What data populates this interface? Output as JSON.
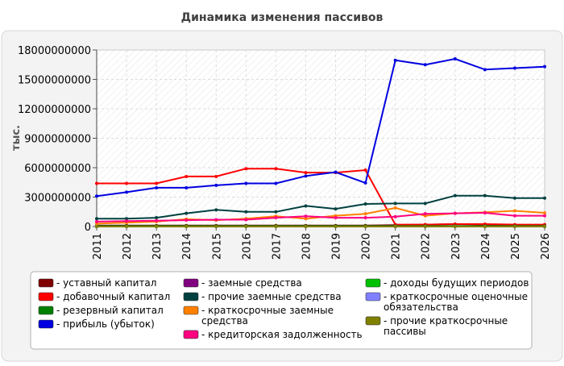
{
  "chart_data": {
    "type": "line",
    "title": "Динамика изменения пассивов",
    "ylabel": "тыс.",
    "xlabel": "",
    "x": [
      "2011",
      "2012",
      "2013",
      "2014",
      "2015",
      "2016",
      "2017",
      "2018",
      "2019",
      "2020",
      "2021",
      "2022",
      "2023",
      "2024",
      "2025",
      "2026"
    ],
    "ylim": [
      0,
      18000000000
    ],
    "yticks": [
      0,
      3000000000,
      6000000000,
      9000000000,
      12000000000,
      15000000000,
      18000000000
    ],
    "ytick_labels": [
      "0",
      "3000000000",
      "6000000000",
      "9000000000",
      "12000000000",
      "15000000000",
      "18000000000"
    ],
    "grid": true,
    "legend_position": "bottom",
    "series": [
      {
        "name": "уставный капитал",
        "color": "#800000",
        "values": [
          100000000,
          100000000,
          100000000,
          100000000,
          100000000,
          100000000,
          100000000,
          100000000,
          100000000,
          100000000,
          150000000,
          200000000,
          250000000,
          200000000,
          150000000,
          150000000
        ]
      },
      {
        "name": "добавочный капитал",
        "color": "#ff0000",
        "values": [
          4400000000,
          4400000000,
          4400000000,
          5100000000,
          5100000000,
          5900000000,
          5900000000,
          5500000000,
          5500000000,
          5750000000,
          200000000,
          200000000,
          250000000,
          250000000,
          200000000,
          200000000
        ]
      },
      {
        "name": "резервный капитал",
        "color": "#008000",
        "values": [
          50000000,
          50000000,
          50000000,
          50000000,
          50000000,
          50000000,
          50000000,
          50000000,
          50000000,
          50000000,
          50000000,
          50000000,
          50000000,
          50000000,
          50000000,
          50000000
        ]
      },
      {
        "name": "прибыль (убыток)",
        "color": "#0000e0",
        "values": [
          3100000000,
          3500000000,
          3950000000,
          3950000000,
          4200000000,
          4400000000,
          4400000000,
          5150000000,
          5550000000,
          4450000000,
          16950000000,
          16500000000,
          17100000000,
          16000000000,
          16150000000,
          16300000000
        ]
      },
      {
        "name": "заемные средства",
        "color": "#800080",
        "values": [
          0,
          0,
          0,
          0,
          0,
          0,
          0,
          0,
          0,
          0,
          0,
          0,
          0,
          0,
          0,
          0
        ]
      },
      {
        "name": "прочие заемные средства",
        "color": "#004040",
        "values": [
          800000000,
          800000000,
          900000000,
          1350000000,
          1700000000,
          1500000000,
          1500000000,
          2100000000,
          1800000000,
          2300000000,
          2350000000,
          2350000000,
          3150000000,
          3150000000,
          2900000000,
          2900000000
        ]
      },
      {
        "name": "краткосрочные заемные средства",
        "color": "#ff8000",
        "values": [
          300000000,
          400000000,
          500000000,
          750000000,
          650000000,
          800000000,
          1050000000,
          800000000,
          1100000000,
          1300000000,
          1900000000,
          1100000000,
          1350000000,
          1450000000,
          1600000000,
          1400000000
        ]
      },
      {
        "name": "кредиторская задолженность",
        "color": "#ff0080",
        "values": [
          500000000,
          550000000,
          600000000,
          650000000,
          700000000,
          700000000,
          900000000,
          1050000000,
          900000000,
          900000000,
          1000000000,
          1300000000,
          1350000000,
          1400000000,
          1100000000,
          1100000000
        ]
      },
      {
        "name": "доходы будущих периодов",
        "color": "#00c000",
        "values": [
          0,
          0,
          0,
          0,
          0,
          0,
          0,
          0,
          0,
          0,
          0,
          0,
          0,
          0,
          0,
          0
        ]
      },
      {
        "name": "краткосрочные оценочные обязательства",
        "color": "#8080ff",
        "values": [
          0,
          0,
          0,
          0,
          0,
          0,
          0,
          0,
          0,
          0,
          0,
          0,
          0,
          0,
          0,
          0
        ]
      },
      {
        "name": "прочие краткосрочные пассивы",
        "color": "#808000",
        "values": [
          0,
          0,
          0,
          0,
          0,
          0,
          0,
          0,
          0,
          0,
          0,
          0,
          0,
          0,
          0,
          0
        ]
      }
    ]
  }
}
